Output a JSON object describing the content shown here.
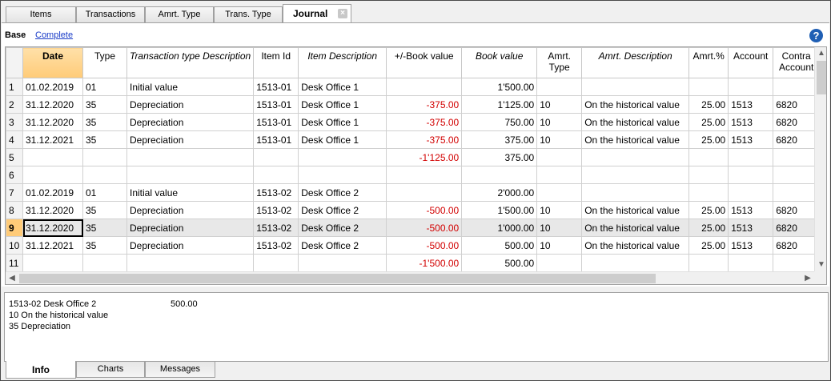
{
  "tabs": [
    {
      "label": "Items"
    },
    {
      "label": "Transactions"
    },
    {
      "label": "Amrt. Type"
    },
    {
      "label": "Trans. Type"
    },
    {
      "label": "Journal"
    }
  ],
  "tab_close_glyph": "×",
  "views": {
    "base": "Base",
    "complete": "Complete"
  },
  "help_glyph": "?",
  "columns": [
    {
      "label": "",
      "key": "rn"
    },
    {
      "label": "Date",
      "key": "date"
    },
    {
      "label": "Type",
      "key": "type"
    },
    {
      "label": "Transaction type Description",
      "key": "ttd"
    },
    {
      "label": "Item Id",
      "key": "item"
    },
    {
      "label": "Item Description",
      "key": "idesc"
    },
    {
      "label": "+/-Book value",
      "key": "delta"
    },
    {
      "label": "Book value",
      "key": "book"
    },
    {
      "label": "Amrt. Type",
      "key": "atype"
    },
    {
      "label": "Amrt. Description",
      "key": "adesc"
    },
    {
      "label": "Amrt.%",
      "key": "apct"
    },
    {
      "label": "Account",
      "key": "acct"
    },
    {
      "label": "Contra Account",
      "key": "contra"
    }
  ],
  "rows": [
    {
      "rn": "1",
      "date": "01.02.2019",
      "type": "01",
      "ttd": "Initial value",
      "item": "1513-01",
      "idesc": "Desk Office 1",
      "delta": "",
      "book": "1'500.00",
      "atype": "",
      "adesc": "",
      "apct": "",
      "acct": "",
      "contra": ""
    },
    {
      "rn": "2",
      "date": "31.12.2020",
      "type": "35",
      "ttd": "Depreciation",
      "item": "1513-01",
      "idesc": "Desk Office 1",
      "delta": "-375.00",
      "book": "1'125.00",
      "atype": "10",
      "adesc": "On the historical value",
      "apct": "25.00",
      "acct": "1513",
      "contra": "6820"
    },
    {
      "rn": "3",
      "date": "31.12.2020",
      "type": "35",
      "ttd": "Depreciation",
      "item": "1513-01",
      "idesc": "Desk Office 1",
      "delta": "-375.00",
      "book": "750.00",
      "atype": "10",
      "adesc": "On the historical value",
      "apct": "25.00",
      "acct": "1513",
      "contra": "6820"
    },
    {
      "rn": "4",
      "date": "31.12.2021",
      "type": "35",
      "ttd": "Depreciation",
      "item": "1513-01",
      "idesc": "Desk Office 1",
      "delta": "-375.00",
      "book": "375.00",
      "atype": "10",
      "adesc": "On the historical value",
      "apct": "25.00",
      "acct": "1513",
      "contra": "6820"
    },
    {
      "rn": "5",
      "date": "",
      "type": "",
      "ttd": "",
      "item": "",
      "idesc": "",
      "delta": "-1'125.00",
      "book": "375.00",
      "atype": "",
      "adesc": "",
      "apct": "",
      "acct": "",
      "contra": ""
    },
    {
      "rn": "6",
      "date": "",
      "type": "",
      "ttd": "",
      "item": "",
      "idesc": "",
      "delta": "",
      "book": "",
      "atype": "",
      "adesc": "",
      "apct": "",
      "acct": "",
      "contra": ""
    },
    {
      "rn": "7",
      "date": "01.02.2019",
      "type": "01",
      "ttd": "Initial value",
      "item": "1513-02",
      "idesc": "Desk Office 2",
      "delta": "",
      "book": "2'000.00",
      "atype": "",
      "adesc": "",
      "apct": "",
      "acct": "",
      "contra": ""
    },
    {
      "rn": "8",
      "date": "31.12.2020",
      "type": "35",
      "ttd": "Depreciation",
      "item": "1513-02",
      "idesc": "Desk Office 2",
      "delta": "-500.00",
      "book": "1'500.00",
      "atype": "10",
      "adesc": "On the historical value",
      "apct": "25.00",
      "acct": "1513",
      "contra": "6820"
    },
    {
      "rn": "9",
      "date": "31.12.2020",
      "type": "35",
      "ttd": "Depreciation",
      "item": "1513-02",
      "idesc": "Desk Office 2",
      "delta": "-500.00",
      "book": "1'000.00",
      "atype": "10",
      "adesc": "On the historical value",
      "apct": "25.00",
      "acct": "1513",
      "contra": "6820"
    },
    {
      "rn": "10",
      "date": "31.12.2021",
      "type": "35",
      "ttd": "Depreciation",
      "item": "1513-02",
      "idesc": "Desk Office 2",
      "delta": "-500.00",
      "book": "500.00",
      "atype": "10",
      "adesc": "On the historical value",
      "apct": "25.00",
      "acct": "1513",
      "contra": "6820"
    },
    {
      "rn": "11",
      "date": "",
      "type": "",
      "ttd": "",
      "item": "",
      "idesc": "",
      "delta": "-1'500.00",
      "book": "500.00",
      "atype": "",
      "adesc": "",
      "apct": "",
      "acct": "",
      "contra": ""
    }
  ],
  "selected_row": 9,
  "info": {
    "line1": "1513-02 Desk Office 2",
    "value": "500.00",
    "line2": "10 On the historical value",
    "line3": "35 Depreciation"
  },
  "bottom_tabs": [
    {
      "label": "Info"
    },
    {
      "label": "Charts"
    },
    {
      "label": "Messages"
    }
  ],
  "colors": {
    "negative": "#d20000",
    "header_highlight": "#ffcb78",
    "link": "#1a3cc8"
  }
}
